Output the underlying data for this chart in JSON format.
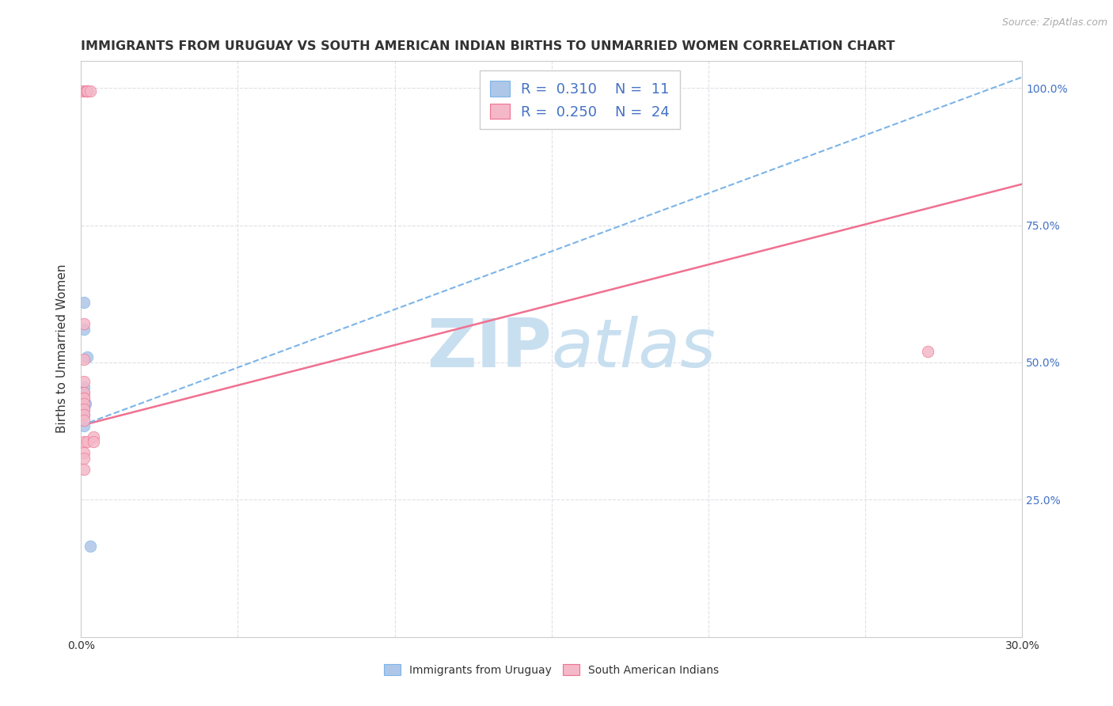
{
  "title": "IMMIGRANTS FROM URUGUAY VS SOUTH AMERICAN INDIAN BIRTHS TO UNMARRIED WOMEN CORRELATION CHART",
  "source": "Source: ZipAtlas.com",
  "ylabel": "Births to Unmarried Women",
  "xlim": [
    0.0,
    0.3
  ],
  "ylim": [
    0.0,
    1.05
  ],
  "y_ticks": [
    0.25,
    0.5,
    0.75,
    1.0
  ],
  "x_ticks": [
    0.0,
    0.05,
    0.1,
    0.15,
    0.2,
    0.25,
    0.3
  ],
  "blue_scatter_x": [
    0.001,
    0.001,
    0.002,
    0.001,
    0.001,
    0.001,
    0.0015,
    0.001,
    0.001,
    0.001,
    0.003
  ],
  "blue_scatter_y": [
    0.61,
    0.56,
    0.51,
    0.455,
    0.445,
    0.425,
    0.425,
    0.415,
    0.405,
    0.385,
    0.165
  ],
  "pink_scatter_x": [
    0.0005,
    0.0015,
    0.002,
    0.002,
    0.002,
    0.003,
    0.001,
    0.001,
    0.001,
    0.001,
    0.001,
    0.001,
    0.001,
    0.001,
    0.001,
    0.001,
    0.001,
    0.002,
    0.004,
    0.004,
    0.001,
    0.001,
    0.27,
    0.001
  ],
  "pink_scatter_y": [
    0.995,
    0.995,
    0.995,
    0.995,
    0.995,
    0.995,
    0.57,
    0.505,
    0.465,
    0.445,
    0.435,
    0.435,
    0.425,
    0.415,
    0.405,
    0.395,
    0.355,
    0.355,
    0.365,
    0.355,
    0.335,
    0.325,
    0.52,
    0.305
  ],
  "blue_R": 0.31,
  "blue_N": 11,
  "pink_R": 0.25,
  "pink_N": 24,
  "blue_trend_x": [
    0.0,
    0.3
  ],
  "blue_trend_y": [
    0.385,
    1.02
  ],
  "pink_trend_x": [
    0.0,
    0.3
  ],
  "pink_trend_y": [
    0.385,
    0.825
  ],
  "blue_color": "#aec6e8",
  "pink_color": "#f4b8c8",
  "blue_line_color": "#7cb4e8",
  "pink_line_color": "#f07090",
  "watermark_zip": "ZIP",
  "watermark_atlas": "atlas",
  "watermark_color": "#c8dff0",
  "scatter_size": 110,
  "background_color": "#ffffff",
  "grid_color": "#e0e0e8",
  "axis_color": "#cccccc",
  "blue_label": "Immigrants from Uruguay",
  "pink_label": "South American Indians",
  "label_color_black": "#333333",
  "label_color_blue": "#4472c4",
  "title_fontsize": 11.5,
  "axis_label_fontsize": 11,
  "tick_label_fontsize": 10,
  "legend_fontsize": 13
}
